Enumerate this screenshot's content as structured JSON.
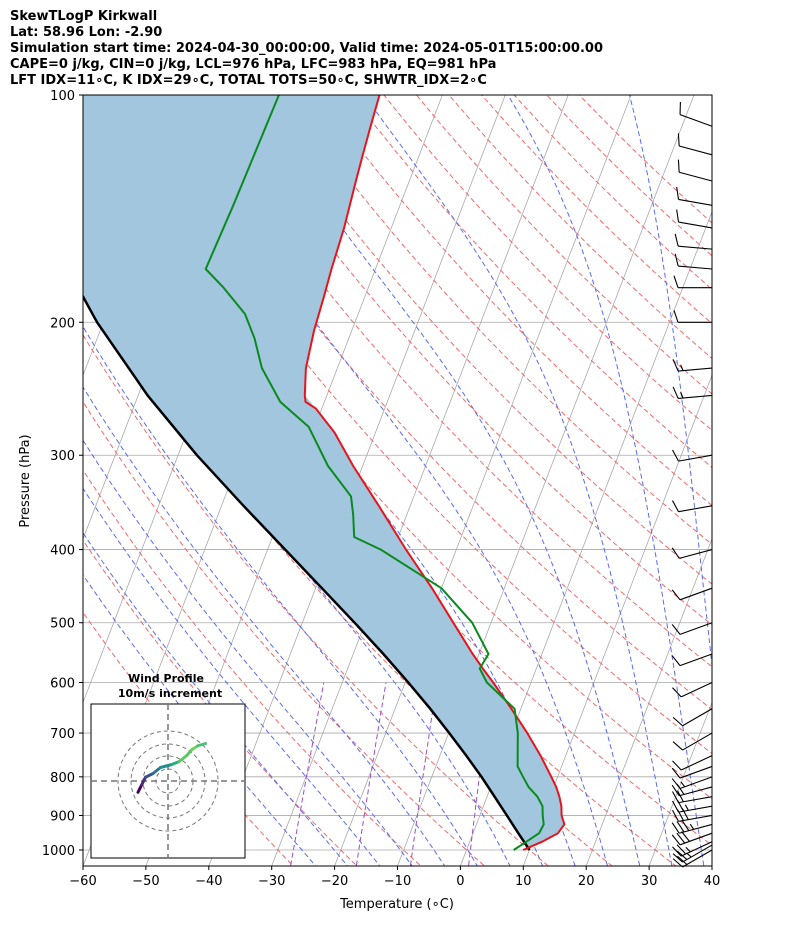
{
  "header": {
    "title": "SkewTLogP Kirkwall",
    "location": "Lat: 58.96   Lon: -2.90",
    "times": "Simulation start time: 2024-04-30_00:00:00, Valid time: 2024-05-01T15:00:00.00",
    "indices1": "CAPE=0 j/kg, CIN=0 j/kg, LCL=976 hPa, LFC=983 hPa, EQ=981 hPa",
    "indices2": "LFT IDX=11∘C, K IDX=29∘C, TOTAL TOTS=50∘C, SHWTR_IDX=2∘C"
  },
  "chart_data": {
    "type": "line",
    "title": "SkewTLogP Kirkwall",
    "xlabel": "Temperature (∘C)",
    "ylabel": "Pressure (hPa)",
    "xlim": [
      -60,
      40
    ],
    "ylim": [
      1050,
      100
    ],
    "y_scale": "log",
    "grid": true,
    "x_ticks": [
      -60,
      -50,
      -40,
      -30,
      -20,
      -10,
      0,
      10,
      20,
      30,
      40
    ],
    "y_ticks": [
      1000,
      900,
      800,
      700,
      600,
      500,
      400,
      300,
      200,
      100
    ],
    "colors": {
      "temperature": "#e8141b",
      "dewpoint": "#0a8a1e",
      "parcel": "#000000",
      "cape_fill": "#a3c6df",
      "dry_adiabat": "#ef6a6a",
      "moist_adiabat": "#5b6cf0",
      "mixing_ratio": "#9b4fc7",
      "isotherm": "#aaaaaa"
    },
    "series": [
      {
        "key": "temperature",
        "pressure": [
          1000,
          990,
          975,
          950,
          925,
          900,
          875,
          850,
          825,
          800,
          750,
          700,
          650,
          600,
          575,
          550,
          500,
          450,
          400,
          350,
          310,
          280,
          260,
          255,
          250,
          230,
          205,
          185,
          170,
          150,
          130,
          120,
          110,
          100
        ],
        "temp": [
          9.0,
          10.0,
          11.5,
          13.5,
          14.0,
          13.0,
          12.4,
          11.5,
          10.4,
          9.0,
          6.0,
          2.5,
          -1.5,
          -6.0,
          -8.5,
          -11.0,
          -16.0,
          -21.5,
          -28.0,
          -35.0,
          -41.5,
          -46.5,
          -51.0,
          -53.0,
          -53.5,
          -55.0,
          -56.0,
          -56.5,
          -57.0,
          -57.5,
          -58.5,
          -59.0,
          -59.5,
          -60.0
        ]
      },
      {
        "key": "dewpoint",
        "pressure": [
          1000,
          975,
          950,
          925,
          900,
          875,
          850,
          825,
          800,
          775,
          700,
          650,
          600,
          575,
          550,
          500,
          450,
          400,
          385,
          360,
          340,
          310,
          275,
          255,
          230,
          210,
          195,
          180,
          170,
          140,
          100
        ],
        "temp": [
          7.5,
          9.0,
          10.5,
          10.7,
          10.0,
          9.4,
          8.0,
          6.0,
          4.5,
          3.0,
          1.0,
          -1.0,
          -7.0,
          -9.0,
          -8.5,
          -13.0,
          -20.0,
          -32.0,
          -37.0,
          -38.5,
          -40.0,
          -45.5,
          -51.0,
          -57.0,
          -62.0,
          -65.0,
          -68.0,
          -73.0,
          -77.0,
          -76.5,
          -76.0
        ]
      },
      {
        "key": "parcel",
        "pressure": [
          1000,
          950,
          900,
          850,
          800,
          750,
          700,
          650,
          600,
          550,
          500,
          450,
          400,
          350,
          300,
          250,
          200,
          150,
          100
        ],
        "temp": [
          10.0,
          7.2,
          4.3,
          1.2,
          -2.1,
          -5.8,
          -9.9,
          -14.4,
          -19.5,
          -25.2,
          -31.7,
          -39.0,
          -47.2,
          -56.5,
          -67.0,
          -78.5,
          -91.0,
          -105.0,
          -119.5
        ]
      }
    ],
    "wind_barbs": {
      "pressure": [
        1000,
        985,
        975,
        950,
        925,
        900,
        875,
        850,
        825,
        800,
        775,
        750,
        700,
        650,
        600,
        550,
        500,
        450,
        400,
        350,
        300,
        250,
        230,
        200,
        180,
        170,
        160,
        150,
        140,
        130,
        120,
        110
      ],
      "speed_kt": [
        20,
        25,
        25,
        30,
        35,
        30,
        25,
        20,
        20,
        15,
        10,
        10,
        10,
        10,
        10,
        10,
        10,
        10,
        10,
        10,
        10,
        15,
        15,
        10,
        10,
        10,
        10,
        10,
        10,
        10,
        10,
        10
      ],
      "direction_deg": [
        240,
        240,
        245,
        250,
        255,
        260,
        260,
        260,
        255,
        250,
        250,
        245,
        240,
        240,
        245,
        250,
        250,
        250,
        255,
        260,
        260,
        265,
        265,
        270,
        270,
        275,
        275,
        280,
        280,
        285,
        285,
        290
      ]
    },
    "inset": {
      "title_line1": "Wind Profile",
      "title_line2": "10m/s increment",
      "u": [
        -4.0,
        -3.5,
        -3.0,
        -2.0,
        -1.0,
        0.5,
        1.5,
        2.5,
        3.2,
        4.0,
        5.0
      ],
      "v": [
        -1.5,
        -0.5,
        0.5,
        1.0,
        1.8,
        2.2,
        2.6,
        3.4,
        4.2,
        4.7,
        5.0
      ]
    }
  }
}
